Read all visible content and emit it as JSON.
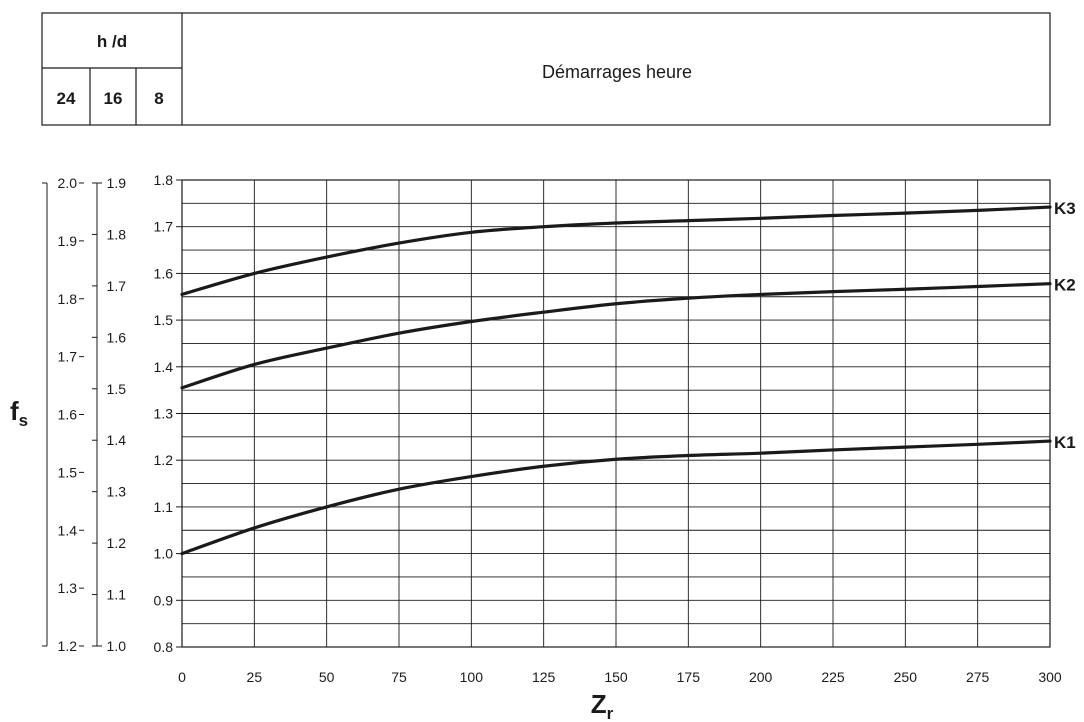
{
  "header": {
    "hours_label": "h /d",
    "hours_values": [
      "24",
      "16",
      "8"
    ],
    "title": "Démarrages heure"
  },
  "chart_data": {
    "type": "line",
    "xlabel": "Z",
    "xlabel_sub": "r",
    "ylabel": "f",
    "ylabel_sub": "s",
    "xlim": [
      0,
      300
    ],
    "x_ticks": [
      "0",
      "25",
      "50",
      "75",
      "100",
      "125",
      "150",
      "175",
      "200",
      "225",
      "250",
      "275",
      "300"
    ],
    "y_axes": [
      {
        "hours": "24",
        "range": [
          1.2,
          2.0
        ],
        "ticks": [
          "2.0",
          "1.9",
          "1.8",
          "1.7",
          "1.6",
          "1.5",
          "1.4",
          "1.3",
          "1.2"
        ]
      },
      {
        "hours": "16",
        "range": [
          1.0,
          1.9
        ],
        "ticks": [
          "1.9",
          "1.8",
          "1.7",
          "1.6",
          "1.5",
          "1.4",
          "1.3",
          "1.2",
          "1.1",
          "1.0"
        ]
      },
      {
        "hours": "8",
        "range": [
          0.8,
          1.8
        ],
        "ticks": [
          "1.8",
          "1.7",
          "1.6",
          "1.5",
          "1.4",
          "1.3",
          "1.2",
          "1.1",
          "1.0",
          "0.9",
          "0.8"
        ]
      }
    ],
    "grid": true,
    "series": [
      {
        "name": "K3",
        "x": [
          0,
          25,
          50,
          75,
          100,
          125,
          150,
          175,
          200,
          225,
          250,
          275,
          300
        ],
        "y": [
          1.555,
          1.6,
          1.635,
          1.665,
          1.688,
          1.7,
          1.708,
          1.713,
          1.718,
          1.724,
          1.729,
          1.735,
          1.742
        ]
      },
      {
        "name": "K2",
        "x": [
          0,
          25,
          50,
          75,
          100,
          125,
          150,
          175,
          200,
          225,
          250,
          275,
          300
        ],
        "y": [
          1.355,
          1.405,
          1.44,
          1.472,
          1.497,
          1.517,
          1.535,
          1.547,
          1.555,
          1.561,
          1.566,
          1.572,
          1.578
        ]
      },
      {
        "name": "K1",
        "x": [
          0,
          25,
          50,
          75,
          100,
          125,
          150,
          175,
          200,
          225,
          250,
          275,
          300
        ],
        "y": [
          1.0,
          1.055,
          1.1,
          1.138,
          1.165,
          1.187,
          1.202,
          1.21,
          1.215,
          1.222,
          1.228,
          1.234,
          1.241
        ]
      }
    ]
  }
}
